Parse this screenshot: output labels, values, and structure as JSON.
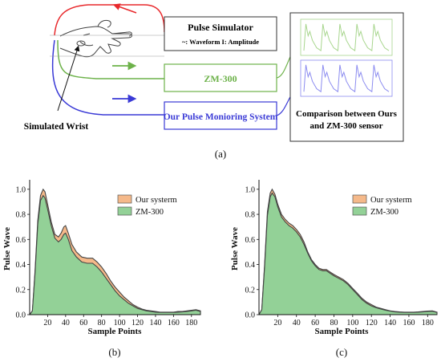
{
  "diagram": {
    "simulator_title": "Pulse Simulator",
    "simulator_subtitle": "~: Waveform  I: Amplitude",
    "zm300_label": "ZM-300",
    "our_system_label": "Our Pulse Monioring System",
    "wrist_label": "Simulated Wrist",
    "comparison_line1": "Comparison between Ours",
    "comparison_line2": "and ZM-300 sensor",
    "caption": "(a)",
    "colors": {
      "red": "#e8282b",
      "green": "#6db24a",
      "blue": "#3a3ad6"
    }
  },
  "chart_data": [
    {
      "type": "area",
      "caption": "(b)",
      "xlabel": "Sample Points",
      "ylabel": "Pulse Wave",
      "xlim": [
        0,
        190
      ],
      "ylim": [
        0,
        1.05
      ],
      "xticks": [
        20,
        40,
        60,
        80,
        100,
        120,
        140,
        160,
        180
      ],
      "yticks": [
        0.0,
        0.2,
        0.4,
        0.6,
        0.8,
        1.0
      ],
      "legend_position": "top-right",
      "series": [
        {
          "name": "Our systerm",
          "color": "#f5b98a",
          "x": [
            0,
            3,
            6,
            9,
            12,
            15,
            17,
            20,
            24,
            28,
            32,
            35,
            38,
            40,
            43,
            47,
            52,
            58,
            64,
            70,
            75,
            80,
            85,
            90,
            95,
            100,
            105,
            110,
            115,
            120,
            125,
            130,
            135,
            140,
            145,
            150,
            155,
            160,
            165,
            170,
            175,
            180,
            185,
            190
          ],
          "y": [
            0.0,
            0.03,
            0.35,
            0.75,
            0.95,
            1.0,
            0.98,
            0.88,
            0.74,
            0.64,
            0.62,
            0.65,
            0.7,
            0.71,
            0.65,
            0.56,
            0.5,
            0.46,
            0.45,
            0.45,
            0.42,
            0.38,
            0.33,
            0.27,
            0.22,
            0.18,
            0.14,
            0.11,
            0.08,
            0.06,
            0.045,
            0.035,
            0.03,
            0.025,
            0.02,
            0.02,
            0.02,
            0.02,
            0.025,
            0.025,
            0.03,
            0.035,
            0.04,
            0.03
          ]
        },
        {
          "name": "ZM-300",
          "color": "#93d197",
          "x": [
            0,
            3,
            6,
            9,
            12,
            15,
            17,
            20,
            24,
            28,
            32,
            35,
            38,
            40,
            43,
            47,
            52,
            58,
            64,
            70,
            75,
            80,
            85,
            90,
            95,
            100,
            105,
            110,
            115,
            120,
            125,
            130,
            135,
            140,
            145,
            150,
            155,
            160,
            165,
            170,
            175,
            180,
            185,
            190
          ],
          "y": [
            0.0,
            0.03,
            0.33,
            0.72,
            0.91,
            0.95,
            0.93,
            0.84,
            0.71,
            0.61,
            0.58,
            0.6,
            0.64,
            0.65,
            0.6,
            0.51,
            0.46,
            0.42,
            0.41,
            0.41,
            0.38,
            0.34,
            0.29,
            0.24,
            0.19,
            0.15,
            0.12,
            0.09,
            0.07,
            0.05,
            0.04,
            0.03,
            0.025,
            0.02,
            0.018,
            0.018,
            0.018,
            0.018,
            0.02,
            0.022,
            0.025,
            0.03,
            0.035,
            0.025
          ]
        }
      ]
    },
    {
      "type": "area",
      "caption": "(c)",
      "xlabel": "Sample Points",
      "ylabel": "Pulse Wave",
      "xlim": [
        0,
        190
      ],
      "ylim": [
        0,
        1.05
      ],
      "xticks": [
        20,
        40,
        60,
        80,
        100,
        120,
        140,
        160,
        180
      ],
      "yticks": [
        0.0,
        0.2,
        0.4,
        0.6,
        0.8,
        1.0
      ],
      "legend_position": "top-right",
      "series": [
        {
          "name": "Our systerm",
          "color": "#f5b98a",
          "x": [
            0,
            3,
            6,
            9,
            12,
            14,
            17,
            20,
            24,
            28,
            32,
            36,
            40,
            44,
            48,
            52,
            56,
            60,
            64,
            68,
            72,
            76,
            80,
            85,
            90,
            95,
            100,
            105,
            110,
            115,
            120,
            125,
            130,
            135,
            140,
            145,
            150,
            155,
            160,
            165,
            170,
            175,
            180,
            185,
            190
          ],
          "y": [
            0.0,
            0.04,
            0.4,
            0.82,
            0.97,
            1.0,
            0.96,
            0.88,
            0.8,
            0.76,
            0.73,
            0.71,
            0.68,
            0.64,
            0.58,
            0.5,
            0.44,
            0.4,
            0.37,
            0.36,
            0.36,
            0.34,
            0.32,
            0.3,
            0.28,
            0.25,
            0.21,
            0.17,
            0.13,
            0.1,
            0.08,
            0.06,
            0.05,
            0.04,
            0.03,
            0.025,
            0.022,
            0.02,
            0.02,
            0.02,
            0.022,
            0.025,
            0.028,
            0.03,
            0.02
          ]
        },
        {
          "name": "ZM-300",
          "color": "#93d197",
          "x": [
            0,
            3,
            6,
            9,
            12,
            14,
            17,
            20,
            24,
            28,
            32,
            36,
            40,
            44,
            48,
            52,
            56,
            60,
            64,
            68,
            72,
            76,
            80,
            85,
            90,
            95,
            100,
            105,
            110,
            115,
            120,
            125,
            130,
            135,
            140,
            145,
            150,
            155,
            160,
            165,
            170,
            175,
            180,
            185,
            190
          ],
          "y": [
            0.0,
            0.04,
            0.38,
            0.79,
            0.94,
            0.97,
            0.94,
            0.86,
            0.78,
            0.74,
            0.71,
            0.69,
            0.66,
            0.62,
            0.56,
            0.49,
            0.43,
            0.39,
            0.36,
            0.35,
            0.35,
            0.33,
            0.31,
            0.29,
            0.27,
            0.24,
            0.2,
            0.16,
            0.12,
            0.09,
            0.07,
            0.055,
            0.045,
            0.035,
            0.028,
            0.022,
            0.02,
            0.018,
            0.018,
            0.018,
            0.02,
            0.022,
            0.025,
            0.027,
            0.018
          ]
        }
      ]
    }
  ]
}
